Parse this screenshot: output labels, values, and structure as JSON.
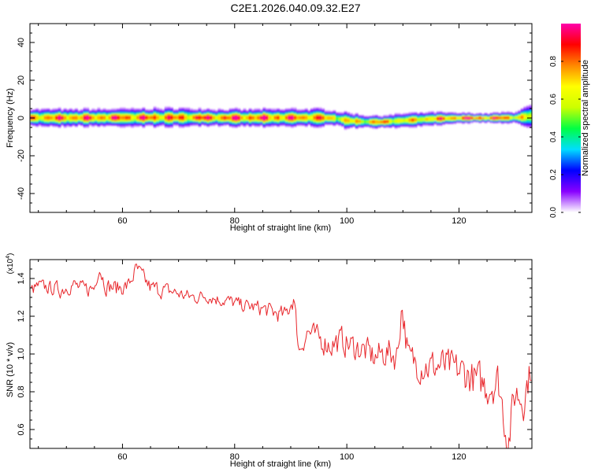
{
  "title": "C2E1.2026.040.09.32.E27",
  "colors": {
    "snr_line": "#e8262b",
    "axis": "#000000",
    "spectrum_bg": "#ffffff"
  },
  "chart_data": [
    {
      "type": "heatmap",
      "name": "spectrogram",
      "xlabel": "Height of straight line (km)",
      "ylabel": "Frequency (Hz)",
      "xlim": [
        43.5,
        133
      ],
      "ylim": [
        -50,
        50
      ],
      "xticks": [
        60,
        80,
        100,
        120
      ],
      "yticks": [
        -40,
        -20,
        0,
        20,
        40
      ],
      "x_tick_labels": [
        "60",
        "80",
        "100",
        "120"
      ],
      "y_tick_labels": [
        "-40",
        "-20",
        "0",
        "20",
        "40"
      ],
      "ridge": {
        "x": [
          43.5,
          50,
          60,
          70,
          80,
          90,
          95,
          98,
          100,
          103,
          106,
          110,
          115,
          120,
          125,
          130,
          133
        ],
        "center_hz": [
          0.3,
          0.2,
          0.3,
          0.4,
          0.2,
          0.3,
          0.3,
          0.0,
          -1.2,
          -1.8,
          -2.0,
          -1.2,
          -0.3,
          0.1,
          0.1,
          0.3,
          1.0
        ],
        "half_width_hz": [
          4.0,
          3.8,
          3.9,
          4.2,
          3.7,
          3.9,
          4.0,
          3.4,
          3.6,
          3.0,
          2.7,
          3.2,
          3.0,
          2.2,
          2.0,
          2.6,
          5.5
        ],
        "peak_amplitude": [
          0.85,
          0.92,
          0.95,
          0.9,
          0.96,
          0.93,
          0.88,
          0.8,
          0.72,
          0.75,
          0.9,
          0.7,
          0.8,
          0.97,
          0.97,
          0.85,
          0.6
        ]
      }
    },
    {
      "type": "colorbar",
      "name": "colorbar",
      "label": "Normalized spectral amplitude",
      "range": [
        0,
        1
      ],
      "ticks": [
        0.0,
        0.2,
        0.4,
        0.6,
        0.8
      ],
      "tick_labels": [
        "0.0",
        "0.2",
        "0.4",
        "0.6",
        "0.8"
      ],
      "colormap": [
        "#ffffff",
        "#8800ff",
        "#0000ff",
        "#00ddff",
        "#00ff44",
        "#ccff00",
        "#ffff00",
        "#ff8800",
        "#ff0000",
        "#ff00aa"
      ]
    },
    {
      "type": "line",
      "name": "snr",
      "xlabel": "Height of straight line (km)",
      "ylabel": "SNR (10 * v/v)",
      "multiplier": "(x10",
      "multiplier_exp": "4",
      "multiplier_close": ")",
      "xlim": [
        43.5,
        133
      ],
      "ylim": [
        0.5,
        1.5
      ],
      "xticks": [
        60,
        80,
        100,
        120
      ],
      "yticks": [
        0.6,
        0.8,
        1.0,
        1.2,
        1.4
      ],
      "x_tick_labels": [
        "60",
        "80",
        "100",
        "120"
      ],
      "y_tick_labels": [
        "0.6",
        "0.8",
        "1.0",
        "1.2",
        "1.4"
      ],
      "series": [
        {
          "name": "SNR",
          "color": "#e8262b",
          "x": [
            43.5,
            45,
            47,
            49,
            51,
            53,
            55,
            55.8,
            57,
            59,
            61,
            62.5,
            65,
            67,
            69,
            71,
            73,
            75,
            77,
            79,
            81,
            83,
            85,
            87,
            89,
            90.5,
            91.5,
            93,
            95,
            97,
            99,
            101,
            103,
            105,
            107,
            109,
            109.8,
            111,
            113,
            115,
            117,
            119,
            121,
            123,
            125,
            127,
            128.8,
            130,
            131.5,
            133
          ],
          "y": [
            1.33,
            1.36,
            1.35,
            1.34,
            1.37,
            1.34,
            1.35,
            1.47,
            1.36,
            1.35,
            1.36,
            1.45,
            1.35,
            1.34,
            1.33,
            1.31,
            1.3,
            1.31,
            1.29,
            1.28,
            1.26,
            1.25,
            1.24,
            1.22,
            1.2,
            1.3,
            1.02,
            1.12,
            1.08,
            1.05,
            1.07,
            1.04,
            1.02,
            0.98,
            1.01,
            0.99,
            1.27,
            0.97,
            0.95,
            0.93,
            0.94,
            0.92,
            0.9,
            0.86,
            0.83,
            0.86,
            0.53,
            0.8,
            0.76,
            0.95
          ],
          "noise_amplitude": [
            0.05,
            0.05,
            0.05,
            0.06,
            0.06,
            0.06,
            0.06,
            0.06,
            0.06,
            0.06,
            0.06,
            0.06,
            0.06,
            0.06,
            0.05,
            0.05,
            0.05,
            0.05,
            0.05,
            0.05,
            0.05,
            0.05,
            0.06,
            0.06,
            0.07,
            0.08,
            0.08,
            0.08,
            0.09,
            0.1,
            0.1,
            0.1,
            0.1,
            0.11,
            0.11,
            0.12,
            0.12,
            0.12,
            0.13,
            0.13,
            0.13,
            0.13,
            0.14,
            0.14,
            0.15,
            0.15,
            0.15,
            0.15,
            0.14,
            0.12
          ]
        }
      ]
    }
  ]
}
